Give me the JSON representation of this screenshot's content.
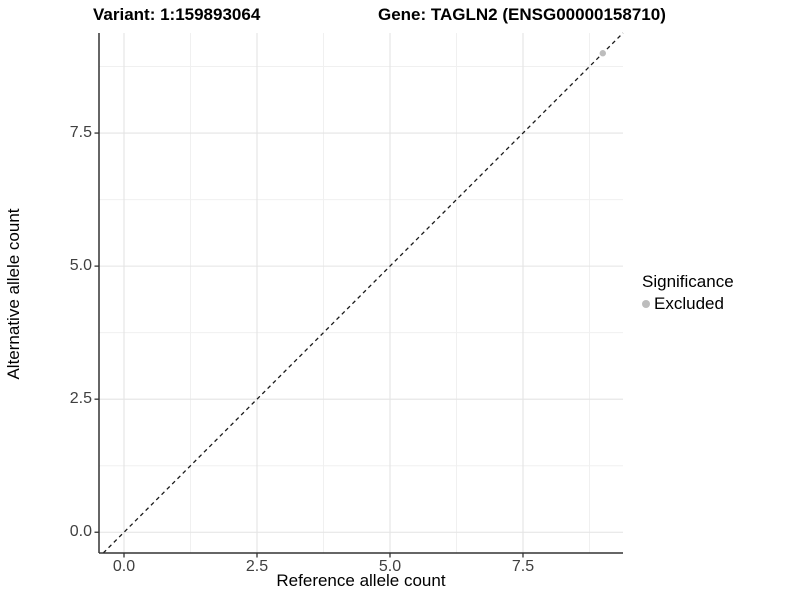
{
  "chart_data": {
    "type": "scatter",
    "title_variant": "Variant: 1:159893064",
    "title_gene": "Gene: TAGLN2 (ENSG00000158710)",
    "xlabel": "Reference allele count",
    "ylabel": "Alternative allele count",
    "xlim": [
      -0.47,
      9.38
    ],
    "ylim": [
      -0.39,
      9.38
    ],
    "x_ticks": [
      0,
      2.5,
      5,
      7.5
    ],
    "y_ticks": [
      0,
      2.5,
      5,
      7.5
    ],
    "x_tick_labels": [
      "0.0",
      "2.5",
      "5.0",
      "7.5"
    ],
    "y_tick_labels": [
      "0.0",
      "2.5",
      "5.0",
      "7.5"
    ],
    "x_minor_ticks": [
      1.25,
      3.75,
      6.25,
      8.75
    ],
    "y_minor_ticks": [
      1.25,
      3.75,
      6.25,
      8.75
    ],
    "grid": true,
    "identity_line": {
      "slope": 1,
      "intercept": 0,
      "style": "dashed",
      "color": "#1a1a1a"
    },
    "points": [
      {
        "x": 9,
        "y": 9,
        "significance": "Excluded",
        "color": "#bdbdbd",
        "radius": 3.2
      }
    ],
    "legend": {
      "position": "right",
      "title": "Significance",
      "items": [
        {
          "label": "Excluded",
          "color": "#bdbdbd"
        }
      ]
    }
  }
}
